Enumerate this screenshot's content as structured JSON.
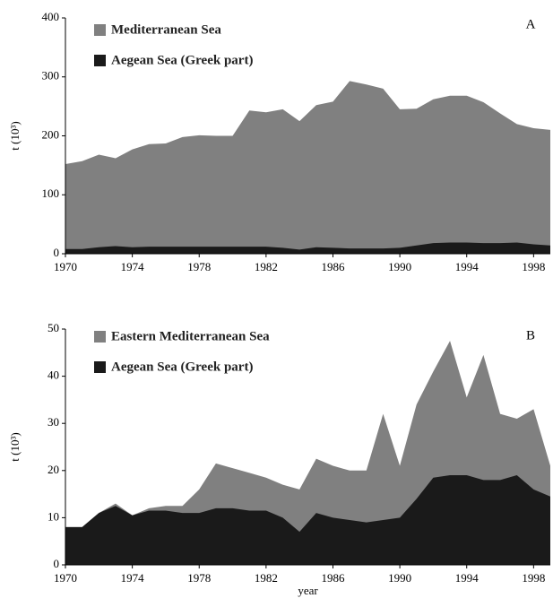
{
  "chart_data": [
    {
      "type": "area",
      "annotation": "A",
      "ylabel": "t (10³)",
      "x": [
        1970,
        1971,
        1972,
        1973,
        1974,
        1975,
        1976,
        1977,
        1978,
        1979,
        1980,
        1981,
        1982,
        1983,
        1984,
        1985,
        1986,
        1987,
        1988,
        1989,
        1990,
        1991,
        1992,
        1993,
        1994,
        1995,
        1996,
        1997,
        1998,
        1999
      ],
      "xlim": [
        1970,
        1999
      ],
      "xticks": [
        1970,
        1974,
        1978,
        1982,
        1986,
        1990,
        1994,
        1998
      ],
      "ylim": [
        0,
        400
      ],
      "yticks": [
        0,
        100,
        200,
        300,
        400
      ],
      "series": [
        {
          "name": "Mediterranean Sea",
          "color": "#808080",
          "values": [
            152,
            157,
            168,
            162,
            177,
            186,
            187,
            198,
            201,
            200,
            200,
            243,
            240,
            245,
            225,
            252,
            258,
            293,
            287,
            280,
            245,
            246,
            262,
            268,
            268,
            257,
            238,
            220,
            213,
            210
          ]
        },
        {
          "name": "Aegean Sea (Greek part)",
          "color": "#1a1a1a",
          "values": [
            8,
            8,
            11,
            13,
            11,
            12,
            12,
            12,
            12,
            12,
            12,
            12,
            12,
            10,
            7,
            11,
            10,
            9,
            9,
            9,
            10,
            14,
            18,
            19,
            19,
            18,
            18,
            19,
            16,
            14
          ]
        }
      ]
    },
    {
      "type": "area",
      "annotation": "B",
      "ylabel": "t (10³)",
      "xlabel": "year",
      "x": [
        1970,
        1971,
        1972,
        1973,
        1974,
        1975,
        1976,
        1977,
        1978,
        1979,
        1980,
        1981,
        1982,
        1983,
        1984,
        1985,
        1986,
        1987,
        1988,
        1989,
        1990,
        1991,
        1992,
        1993,
        1994,
        1995,
        1996,
        1997,
        1998,
        1999
      ],
      "xlim": [
        1970,
        1999
      ],
      "xticks": [
        1970,
        1974,
        1978,
        1982,
        1986,
        1990,
        1994,
        1998
      ],
      "ylim": [
        0,
        50
      ],
      "yticks": [
        0,
        10,
        20,
        30,
        40,
        50
      ],
      "series": [
        {
          "name": "Eastern Mediterranean Sea",
          "color": "#808080",
          "values": [
            8,
            8,
            11,
            13,
            10.5,
            12,
            12.5,
            12.5,
            16,
            21.5,
            20.5,
            19.5,
            18.5,
            17,
            16,
            22.5,
            21,
            20,
            20,
            32,
            21,
            34,
            41,
            47.5,
            35.5,
            44.5,
            32,
            31,
            33,
            21
          ]
        },
        {
          "name": "Aegean Sea (Greek part)",
          "color": "#1a1a1a",
          "values": [
            8,
            8,
            11,
            12.5,
            10.5,
            11.5,
            11.5,
            11,
            11,
            12,
            12,
            11.5,
            11.5,
            10,
            7,
            11,
            10,
            9.5,
            9,
            9.5,
            10,
            14,
            18.5,
            19,
            19,
            18,
            18,
            19,
            16,
            14.5
          ]
        }
      ]
    }
  ]
}
